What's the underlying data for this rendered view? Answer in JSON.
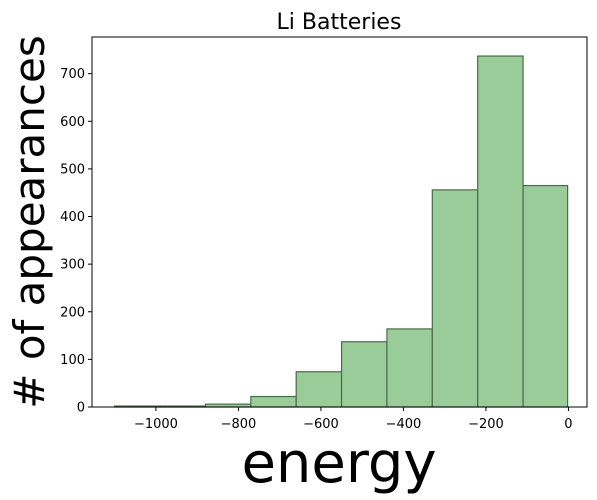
{
  "chart_data": {
    "type": "bar",
    "title": "Li Batteries",
    "xlabel": "energy",
    "ylabel": "# of appearances",
    "bar_color": "#99cc99",
    "edge_color": "#4a6b4a",
    "xlim": [
      -1155,
      45
    ],
    "ylim": [
      0,
      777
    ],
    "xticks": [
      -1000,
      -800,
      -600,
      -400,
      -200,
      0
    ],
    "xtick_labels": [
      "−1000",
      "−800",
      "−600",
      "−400",
      "−200",
      "0"
    ],
    "yticks": [
      0,
      100,
      200,
      300,
      400,
      500,
      600,
      700
    ],
    "ytick_labels": [
      "0",
      "100",
      "200",
      "300",
      "400",
      "500",
      "600",
      "700"
    ],
    "bins": [
      {
        "x0": -1100,
        "x1": -990,
        "count": 2
      },
      {
        "x0": -990,
        "x1": -880,
        "count": 2
      },
      {
        "x0": -880,
        "x1": -770,
        "count": 6
      },
      {
        "x0": -770,
        "x1": -660,
        "count": 22
      },
      {
        "x0": -660,
        "x1": -550,
        "count": 74
      },
      {
        "x0": -550,
        "x1": -440,
        "count": 137
      },
      {
        "x0": -440,
        "x1": -330,
        "count": 164
      },
      {
        "x0": -330,
        "x1": -220,
        "count": 456
      },
      {
        "x0": -220,
        "x1": -110,
        "count": 737
      },
      {
        "x0": -110,
        "x1": -2,
        "count": 465
      }
    ],
    "grid": false,
    "legend": "none"
  }
}
